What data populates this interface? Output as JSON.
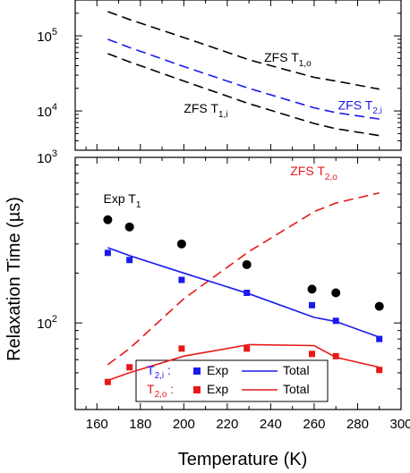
{
  "chart_data": {
    "type": "scatter",
    "ylabel": "Relaxation Time (µs)",
    "xlabel": "Temperature (K)",
    "xlim": [
      150,
      300
    ],
    "x_ticks": [
      160,
      180,
      200,
      220,
      240,
      260,
      280,
      300
    ],
    "x_tick_labels": [
      "160",
      "180",
      "200",
      "220",
      "240",
      "260",
      "280",
      "300"
    ],
    "colors": {
      "black": "#000000",
      "blue": "#1a1aee",
      "red": "#e81818"
    },
    "panels": [
      {
        "name": "top",
        "yscale": "log",
        "ylim": [
          3000,
          300000
        ],
        "y_tick_labels": [
          {
            "value": 100000,
            "base": "10",
            "exp": "5"
          },
          {
            "value": 10000,
            "base": "10",
            "exp": "4"
          }
        ],
        "series": [
          {
            "name": "ZFS T1,o",
            "style": "dashed",
            "color": "black",
            "x": [
              165,
              175,
              200,
              230,
              260,
              270,
              290
            ],
            "y": [
              210000,
              165000,
              95000,
              48000,
              28000,
              25000,
              19500
            ]
          },
          {
            "name": "ZFS T2,i",
            "style": "dashed",
            "color": "blue",
            "x": [
              165,
              175,
              200,
              230,
              260,
              270,
              290
            ],
            "y": [
              90000,
              70000,
              39000,
              20000,
              11000,
              9500,
              7800
            ]
          },
          {
            "name": "ZFS T1,i",
            "style": "dashed",
            "color": "black",
            "x": [
              165,
              175,
              200,
              230,
              260,
              270,
              290
            ],
            "y": [
              58000,
              45000,
              25000,
              12500,
              6800,
              5800,
              4700
            ]
          }
        ],
        "annotations": [
          {
            "base": "ZFS T",
            "sub": "1,o",
            "color": "black",
            "x": 237,
            "y": 45000
          },
          {
            "base": "ZFS T",
            "sub": "2,i",
            "color": "blue",
            "x": 271,
            "y": 10500
          },
          {
            "base": "ZFS T",
            "sub": "1,i",
            "color": "black",
            "x": 200,
            "y": 9500
          }
        ]
      },
      {
        "name": "bottom",
        "yscale": "log",
        "ylim": [
          30,
          1000
        ],
        "y_tick_labels": [
          {
            "value": 1000,
            "base": "10",
            "exp": "3"
          },
          {
            "value": 100,
            "base": "10",
            "exp": "2"
          }
        ],
        "series": [
          {
            "name": "Exp T1",
            "marker": "circle",
            "color": "black",
            "x": [
              165,
              175,
              199,
              229,
              259,
              270,
              290
            ],
            "y": [
              420,
              380,
              300,
              225,
              160,
              152,
              126
            ]
          },
          {
            "name": "ZFS T2,o",
            "style": "dashed",
            "color": "red",
            "x": [
              165,
              175,
              200,
              230,
              260,
              270,
              290
            ],
            "y": [
              56,
              70,
              140,
              270,
              470,
              530,
              610
            ]
          },
          {
            "name": "T2,i Exp",
            "marker": "square",
            "color": "blue",
            "x": [
              165,
              175,
              199,
              229,
              259,
              270,
              290
            ],
            "y": [
              265,
              240,
              182,
              152,
              128,
              103,
              80
            ]
          },
          {
            "name": "T2,i Total",
            "style": "solid",
            "color": "blue",
            "x": [
              165,
              175,
              200,
              230,
              260,
              270,
              290
            ],
            "y": [
              285,
              255,
              200,
              150,
              108,
              102,
              82
            ]
          },
          {
            "name": "T2,o Exp",
            "marker": "square",
            "color": "red",
            "x": [
              165,
              175,
              199,
              229,
              259,
              270,
              290
            ],
            "y": [
              44,
              54,
              70,
              70,
              65,
              63,
              52
            ]
          },
          {
            "name": "T2,o Total",
            "style": "solid",
            "color": "red",
            "x": [
              165,
              175,
              200,
              230,
              260,
              270,
              290
            ],
            "y": [
              45,
              50,
              63,
              74,
              73,
              62,
              54
            ]
          }
        ],
        "annotations": [
          {
            "base": "Exp T",
            "sub": "1",
            "color": "black",
            "x": 163,
            "y": 530
          },
          {
            "base": "ZFS T",
            "sub": "2,o",
            "color": "red",
            "x": 249,
            "y": 780
          }
        ],
        "legend": {
          "placement": "bottom-left",
          "rows": [
            {
              "base": "T",
              "sub": "2,i",
              "colon": " :",
              "color": "blue",
              "exp_label": "Exp",
              "total_label": "Total"
            },
            {
              "base": "T",
              "sub": "2,o",
              "colon": " :",
              "color": "red",
              "exp_label": "Exp",
              "total_label": "Total"
            }
          ]
        }
      }
    ]
  }
}
